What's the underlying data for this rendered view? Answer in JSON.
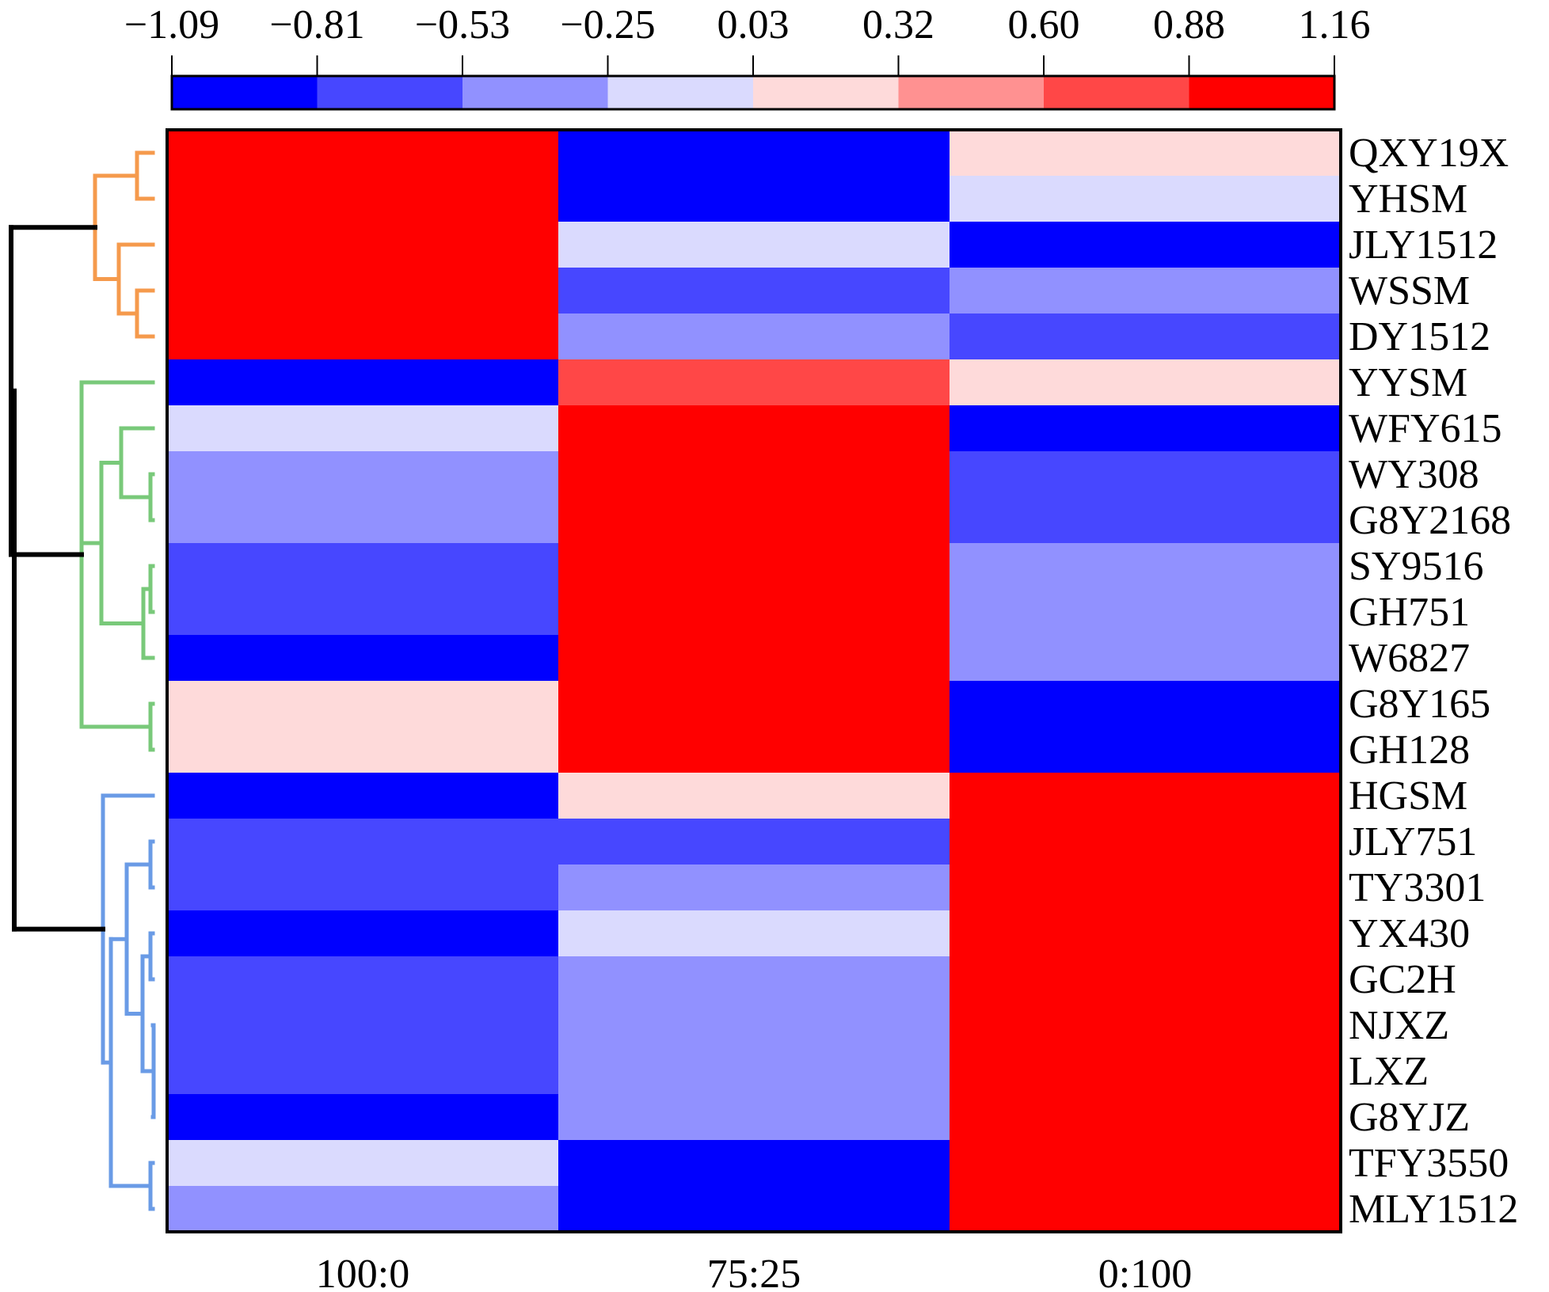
{
  "chart_data": {
    "type": "heatmap",
    "columns": [
      "100:0",
      "75:25",
      "0:100"
    ],
    "rows": [
      "QXY19X",
      "YHSM",
      "JLY1512",
      "WSSM",
      "DY1512",
      "YYSM",
      "WFY615",
      "WY308",
      "G8Y2168",
      "SY9516",
      "GH751",
      "W6827",
      "G8Y165",
      "GH128",
      "HGSM",
      "JLY751",
      "TY3301",
      "YX430",
      "GC2H",
      "NJXZ",
      "LXZ",
      "G8YJZ",
      "TFY3550",
      "MLY1512"
    ],
    "values": [
      [
        1.02,
        -0.95,
        0.17
      ],
      [
        1.02,
        -0.95,
        -0.11
      ],
      [
        1.02,
        -0.11,
        -0.95
      ],
      [
        1.02,
        -0.67,
        -0.39
      ],
      [
        1.02,
        -0.39,
        -0.67
      ],
      [
        -0.95,
        0.74,
        0.17
      ],
      [
        -0.11,
        1.02,
        -0.95
      ],
      [
        -0.39,
        1.02,
        -0.67
      ],
      [
        -0.39,
        1.02,
        -0.67
      ],
      [
        -0.67,
        1.02,
        -0.39
      ],
      [
        -0.67,
        1.02,
        -0.39
      ],
      [
        -0.95,
        1.02,
        -0.39
      ],
      [
        0.17,
        1.02,
        -0.95
      ],
      [
        0.17,
        1.02,
        -0.95
      ],
      [
        -0.95,
        0.17,
        1.02
      ],
      [
        -0.67,
        -0.67,
        1.02
      ],
      [
        -0.67,
        -0.39,
        1.02
      ],
      [
        -0.95,
        -0.11,
        1.02
      ],
      [
        -0.67,
        -0.39,
        1.02
      ],
      [
        -0.67,
        -0.39,
        1.02
      ],
      [
        -0.67,
        -0.39,
        1.02
      ],
      [
        -0.95,
        -0.39,
        1.02
      ],
      [
        -0.11,
        -0.95,
        1.02
      ],
      [
        -0.39,
        -0.95,
        1.02
      ]
    ],
    "colorbar": {
      "ticks": [
        "−1.09",
        "−0.81",
        "−0.53",
        "−0.25",
        "0.03",
        "0.32",
        "0.60",
        "0.88",
        "1.16"
      ],
      "range": [
        -1.09,
        1.16
      ],
      "colors": [
        "#0000ff",
        "#4747ff",
        "#9191ff",
        "#dadafe",
        "#fedada",
        "#ff9191",
        "#ff4747",
        "#ff0000"
      ]
    },
    "dendrogram": {
      "clusters": [
        {
          "rows": [
            0,
            1,
            2,
            3,
            4
          ],
          "color": "#f59a4c"
        },
        {
          "rows": [
            5,
            6,
            7,
            8,
            9,
            10,
            11,
            12,
            13
          ],
          "color": "#79c97a"
        },
        {
          "rows": [
            14,
            15,
            16,
            17,
            18,
            19,
            20,
            21,
            22,
            23
          ],
          "color": "#6a9be6"
        }
      ],
      "root_color": "#000000"
    }
  }
}
